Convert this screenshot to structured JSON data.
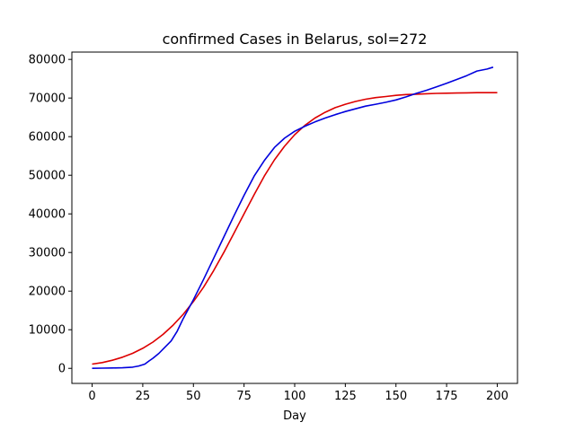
{
  "chart_data": {
    "type": "line",
    "title": "confirmed Cases in Belarus, sol=272",
    "xlabel": "Day",
    "ylabel": "",
    "xlim": [
      -10,
      210
    ],
    "ylim": [
      -3900,
      81900
    ],
    "xticks": [
      0,
      25,
      50,
      75,
      100,
      125,
      150,
      175,
      200
    ],
    "yticks": [
      0,
      10000,
      20000,
      30000,
      40000,
      50000,
      60000,
      70000,
      80000
    ],
    "grid": false,
    "series": [
      {
        "color": "#dd0000",
        "x": [
          0,
          5,
          10,
          15,
          20,
          25,
          30,
          35,
          40,
          45,
          50,
          55,
          60,
          65,
          70,
          75,
          80,
          85,
          90,
          95,
          100,
          105,
          110,
          115,
          120,
          125,
          130,
          135,
          140,
          145,
          150,
          155,
          160,
          165,
          170,
          175,
          180,
          185,
          190,
          195,
          200
        ],
        "values": [
          1100,
          1500,
          2100,
          2900,
          3900,
          5200,
          6800,
          8800,
          11200,
          14000,
          17300,
          21000,
          25300,
          30000,
          35000,
          40000,
          45000,
          49800,
          54000,
          57500,
          60500,
          62900,
          64800,
          66300,
          67500,
          68400,
          69100,
          69700,
          70100,
          70400,
          70700,
          70900,
          71000,
          71100,
          71200,
          71250,
          71300,
          71350,
          71380,
          71400,
          71400
        ]
      },
      {
        "color": "#0000dd",
        "x": [
          0,
          5,
          10,
          15,
          20,
          23,
          26,
          28,
          30,
          33,
          36,
          39,
          42,
          45,
          50,
          55,
          60,
          65,
          70,
          75,
          80,
          85,
          90,
          95,
          100,
          105,
          110,
          115,
          120,
          125,
          130,
          135,
          140,
          145,
          150,
          155,
          160,
          165,
          170,
          175,
          180,
          185,
          190,
          195,
          198
        ],
        "values": [
          0,
          50,
          100,
          150,
          300,
          600,
          1100,
          1900,
          2600,
          3900,
          5500,
          7100,
          9600,
          12900,
          17800,
          23000,
          28500,
          34000,
          39500,
          44800,
          49800,
          53800,
          57200,
          59600,
          61400,
          62700,
          63800,
          64800,
          65700,
          66500,
          67200,
          67900,
          68400,
          68900,
          69500,
          70300,
          71200,
          72000,
          72900,
          73800,
          74800,
          75800,
          77000,
          77500,
          78000
        ]
      }
    ]
  }
}
